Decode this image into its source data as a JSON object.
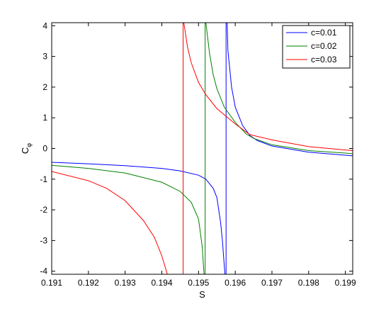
{
  "chart_data": {
    "type": "line",
    "xlabel": "S",
    "ylabel": "C",
    "ylabel_subscript": "φ",
    "xlim": [
      0.191,
      0.1992
    ],
    "ylim": [
      -4.1,
      4.1
    ],
    "xticks": [
      0.191,
      0.192,
      0.193,
      0.194,
      0.195,
      0.196,
      0.197,
      0.198,
      0.199
    ],
    "xtick_labels": [
      "0.191",
      "0.192",
      "0.193",
      "0.194",
      "0.195",
      "0.196",
      "0.197",
      "0.198",
      "0.199"
    ],
    "yticks": [
      -4,
      -3,
      -2,
      -1,
      0,
      1,
      2,
      3,
      4
    ],
    "ytick_labels": [
      "-4",
      "-3",
      "-2",
      "-1",
      "0",
      "1",
      "2",
      "3",
      "4"
    ],
    "grid": false,
    "legend_position": "top-right",
    "series": [
      {
        "name": "c=0.01",
        "color": "#0000ff",
        "pole": 0.19575,
        "branches": [
          {
            "x": [
              0.191,
              0.192,
              0.193,
              0.194,
              0.1945,
              0.195,
              0.1952,
              0.1954,
              0.1955,
              0.1956,
              0.19565,
              0.1957,
              0.19572
            ],
            "y": [
              -0.45,
              -0.5,
              -0.56,
              -0.65,
              -0.73,
              -0.87,
              -1.0,
              -1.3,
              -1.6,
              -2.4,
              -3.0,
              -3.8,
              -4.1
            ]
          },
          {
            "x": [
              0.19578,
              0.1958,
              0.19585,
              0.1959,
              0.196,
              0.1962,
              0.1964,
              0.1966,
              0.197,
              0.198,
              0.199,
              0.1992
            ],
            "y": [
              4.1,
              3.2,
              2.6,
              2.0,
              1.35,
              0.75,
              0.42,
              0.26,
              0.08,
              -0.12,
              -0.22,
              -0.24
            ]
          }
        ]
      },
      {
        "name": "c=0.02",
        "color": "#008000",
        "pole": 0.19518,
        "branches": [
          {
            "x": [
              0.191,
              0.192,
              0.193,
              0.194,
              0.1945,
              0.1948,
              0.195,
              0.1951,
              0.19515
            ],
            "y": [
              -0.55,
              -0.65,
              -0.8,
              -1.1,
              -1.4,
              -1.75,
              -2.3,
              -3.2,
              -4.1
            ]
          },
          {
            "x": [
              0.1952,
              0.19525,
              0.1953,
              0.1954,
              0.1955,
              0.1957,
              0.196,
              0.1963,
              0.1965,
              0.197,
              0.198,
              0.199,
              0.1992
            ],
            "y": [
              4.1,
              3.6,
              3.1,
              2.4,
              1.95,
              1.35,
              0.85,
              0.47,
              0.33,
              0.12,
              -0.07,
              -0.15,
              -0.17
            ]
          }
        ]
      },
      {
        "name": "c=0.03",
        "color": "#ff0000",
        "pole": 0.19458,
        "branches": [
          {
            "x": [
              0.191,
              0.192,
              0.1925,
              0.193,
              0.1935,
              0.1938,
              0.194,
              0.1941,
              0.19415
            ],
            "y": [
              -0.75,
              -1.05,
              -1.3,
              -1.7,
              -2.35,
              -2.9,
              -3.5,
              -3.9,
              -4.1
            ]
          },
          {
            "x": [
              0.1946,
              0.1947,
              0.1948,
              0.195,
              0.1952,
              0.1955,
              0.196,
              0.1964,
              0.197,
              0.198,
              0.199,
              0.1992
            ],
            "y": [
              4.1,
              3.3,
              2.8,
              2.15,
              1.75,
              1.3,
              0.8,
              0.45,
              0.28,
              0.06,
              -0.05,
              -0.07
            ]
          }
        ]
      }
    ]
  }
}
